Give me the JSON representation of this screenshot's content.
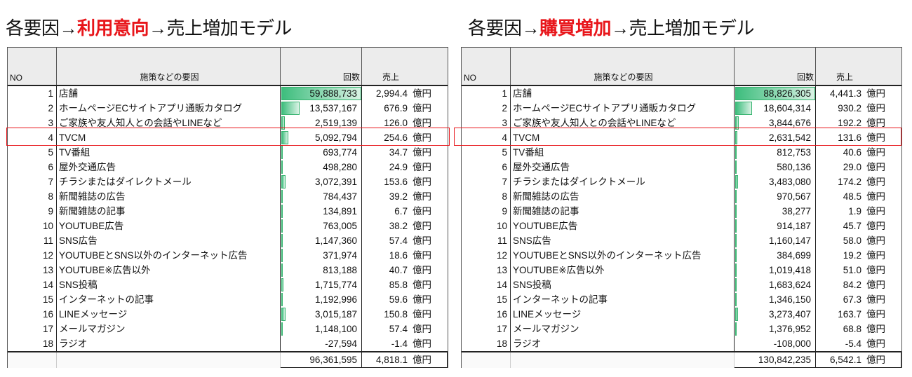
{
  "left": {
    "title_pre": "各要因→",
    "title_hl": "利用意向",
    "title_post": "→売上増加モデル",
    "headers": {
      "no": "NO",
      "factor": "施策などの要因",
      "count": "回数",
      "sales": "売上"
    },
    "unit": "億円",
    "rows": [
      {
        "no": "1",
        "factor": "店舗",
        "count": "59,888,733",
        "sales": "2,994.4"
      },
      {
        "no": "2",
        "factor": "ホームページECサイトアプリ通販カタログ",
        "count": "13,537,167",
        "sales": "676.9"
      },
      {
        "no": "3",
        "factor": "ご家族や友人知人との会話やLINEなど",
        "count": "2,519,139",
        "sales": "126.0"
      },
      {
        "no": "4",
        "factor": "TVCM",
        "count": "5,092,794",
        "sales": "254.6"
      },
      {
        "no": "5",
        "factor": "TV番組",
        "count": "693,774",
        "sales": "34.7"
      },
      {
        "no": "6",
        "factor": "屋外交通広告",
        "count": "498,280",
        "sales": "24.9"
      },
      {
        "no": "7",
        "factor": "チラシまたはダイレクトメール",
        "count": "3,072,391",
        "sales": "153.6"
      },
      {
        "no": "8",
        "factor": "新聞雑誌の広告",
        "count": "784,437",
        "sales": "39.2"
      },
      {
        "no": "9",
        "factor": "新聞雑誌の記事",
        "count": "134,891",
        "sales": "6.7"
      },
      {
        "no": "10",
        "factor": "YOUTUBE広告",
        "count": "763,005",
        "sales": "38.2"
      },
      {
        "no": "11",
        "factor": "SNS広告",
        "count": "1,147,360",
        "sales": "57.4"
      },
      {
        "no": "12",
        "factor": "YOUTUBEとSNS以外のインターネット広告",
        "count": "371,974",
        "sales": "18.6"
      },
      {
        "no": "13",
        "factor": "YOUTUBE※広告以外",
        "count": "813,188",
        "sales": "40.7"
      },
      {
        "no": "14",
        "factor": "SNS投稿",
        "count": "1,715,774",
        "sales": "85.8"
      },
      {
        "no": "15",
        "factor": "インターネットの記事",
        "count": "1,192,996",
        "sales": "59.6"
      },
      {
        "no": "16",
        "factor": "LINEメッセージ",
        "count": "3,015,187",
        "sales": "150.8"
      },
      {
        "no": "17",
        "factor": "メールマガジン",
        "count": "1,148,100",
        "sales": "57.4"
      },
      {
        "no": "18",
        "factor": "ラジオ",
        "count": "-27,594",
        "sales": "-1.4"
      }
    ],
    "total": {
      "count": "96,361,595",
      "sales": "4,818.1"
    }
  },
  "right": {
    "title_pre": "各要因→",
    "title_hl": "購買増加",
    "title_post": "→売上増加モデル",
    "headers": {
      "no": "NO",
      "factor": "施策などの要因",
      "count": "回数",
      "sales": "売上"
    },
    "unit": "億円",
    "rows": [
      {
        "no": "1",
        "factor": "店舗",
        "count": "88,826,305",
        "sales": "4,441.3"
      },
      {
        "no": "2",
        "factor": "ホームページECサイトアプリ通販カタログ",
        "count": "18,604,314",
        "sales": "930.2"
      },
      {
        "no": "3",
        "factor": "ご家族や友人知人との会話やLINEなど",
        "count": "3,844,676",
        "sales": "192.2"
      },
      {
        "no": "4",
        "factor": "TVCM",
        "count": "2,631,542",
        "sales": "131.6"
      },
      {
        "no": "5",
        "factor": "TV番組",
        "count": "812,753",
        "sales": "40.6"
      },
      {
        "no": "6",
        "factor": "屋外交通広告",
        "count": "580,136",
        "sales": "29.0"
      },
      {
        "no": "7",
        "factor": "チラシまたはダイレクトメール",
        "count": "3,483,080",
        "sales": "174.2"
      },
      {
        "no": "8",
        "factor": "新聞雑誌の広告",
        "count": "970,567",
        "sales": "48.5"
      },
      {
        "no": "9",
        "factor": "新聞雑誌の記事",
        "count": "38,277",
        "sales": "1.9"
      },
      {
        "no": "10",
        "factor": "YOUTUBE広告",
        "count": "914,187",
        "sales": "45.7"
      },
      {
        "no": "11",
        "factor": "SNS広告",
        "count": "1,160,147",
        "sales": "58.0"
      },
      {
        "no": "12",
        "factor": "YOUTUBEとSNS以外のインターネット広告",
        "count": "384,699",
        "sales": "19.2"
      },
      {
        "no": "13",
        "factor": "YOUTUBE※広告以外",
        "count": "1,019,418",
        "sales": "51.0"
      },
      {
        "no": "14",
        "factor": "SNS投稿",
        "count": "1,683,624",
        "sales": "84.2"
      },
      {
        "no": "15",
        "factor": "インターネットの記事",
        "count": "1,346,150",
        "sales": "67.3"
      },
      {
        "no": "16",
        "factor": "LINEメッセージ",
        "count": "3,273,407",
        "sales": "163.7"
      },
      {
        "no": "17",
        "factor": "メールマガジン",
        "count": "1,376,952",
        "sales": "68.8"
      },
      {
        "no": "18",
        "factor": "ラジオ",
        "count": "-108,000",
        "sales": "-5.4"
      }
    ],
    "total": {
      "count": "130,842,235",
      "sales": "6,542.1"
    }
  },
  "colors": {
    "highlight": "#e8161b",
    "bar": "#3dbd7d"
  }
}
